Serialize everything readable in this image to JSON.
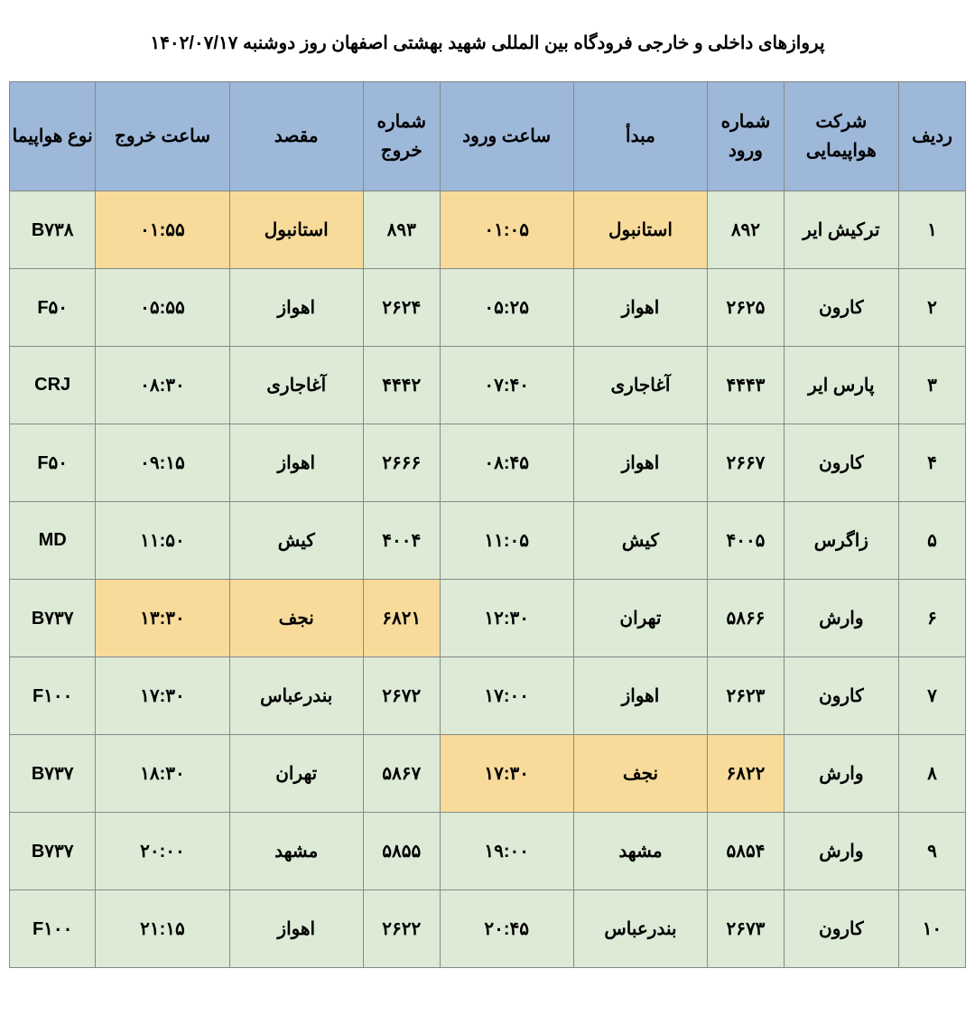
{
  "title": "پروازهای داخلی و خارجی فرودگاه بین المللی شهید بهشتی اصفهان روز دوشنبه ۱۴۰۲/۰۷/۱۷",
  "colors": {
    "header_bg": "#9db8d9",
    "cell_bg": "#dcead6",
    "highlight_bg": "#f8db9a",
    "border": "#888888",
    "page_bg": "#ffffff",
    "text": "#000000"
  },
  "headers": {
    "row": "ردیف",
    "airline": "شرکت\nهواپیمایی",
    "in_num": "شماره\nورود",
    "origin": "مبدأ",
    "in_time": "ساعت ورود",
    "out_num": "شماره\nخروج",
    "dest": "مقصد",
    "out_time": "ساعت خروج",
    "plane": "نوع هواپیما"
  },
  "rows": [
    {
      "row": "۱",
      "airline": "ترکیش ایر",
      "in_num": "۸۹۲",
      "origin": "استانبول",
      "in_time": "۰۱:۰۵",
      "out_num": "۸۹۳",
      "dest": "استانبول",
      "out_time": "۰۱:۵۵",
      "plane": "B۷۳۸",
      "hl": [
        "origin",
        "in_time",
        "dest",
        "out_time"
      ]
    },
    {
      "row": "۲",
      "airline": "کارون",
      "in_num": "۲۶۲۵",
      "origin": "اهواز",
      "in_time": "۰۵:۲۵",
      "out_num": "۲۶۲۴",
      "dest": "اهواز",
      "out_time": "۰۵:۵۵",
      "plane": "F۵۰",
      "hl": []
    },
    {
      "row": "۳",
      "airline": "پارس ایر",
      "in_num": "۴۴۴۳",
      "origin": "آغاجاری",
      "in_time": "۰۷:۴۰",
      "out_num": "۴۴۴۲",
      "dest": "آغاجاری",
      "out_time": "۰۸:۳۰",
      "plane": "CRJ",
      "hl": []
    },
    {
      "row": "۴",
      "airline": "کارون",
      "in_num": "۲۶۶۷",
      "origin": "اهواز",
      "in_time": "۰۸:۴۵",
      "out_num": "۲۶۶۶",
      "dest": "اهواز",
      "out_time": "۰۹:۱۵",
      "plane": "F۵۰",
      "hl": []
    },
    {
      "row": "۵",
      "airline": "زاگرس",
      "in_num": "۴۰۰۵",
      "origin": "کیش",
      "in_time": "۱۱:۰۵",
      "out_num": "۴۰۰۴",
      "dest": "کیش",
      "out_time": "۱۱:۵۰",
      "plane": "MD",
      "hl": []
    },
    {
      "row": "۶",
      "airline": "وارش",
      "in_num": "۵۸۶۶",
      "origin": "تهران",
      "in_time": "۱۲:۳۰",
      "out_num": "۶۸۲۱",
      "dest": "نجف",
      "out_time": "۱۳:۳۰",
      "plane": "B۷۳۷",
      "hl": [
        "out_num",
        "dest",
        "out_time"
      ]
    },
    {
      "row": "۷",
      "airline": "کارون",
      "in_num": "۲۶۲۳",
      "origin": "اهواز",
      "in_time": "۱۷:۰۰",
      "out_num": "۲۶۷۲",
      "dest": "بندرعباس",
      "out_time": "۱۷:۳۰",
      "plane": "F۱۰۰",
      "hl": []
    },
    {
      "row": "۸",
      "airline": "وارش",
      "in_num": "۶۸۲۲",
      "origin": "نجف",
      "in_time": "۱۷:۳۰",
      "out_num": "۵۸۶۷",
      "dest": "تهران",
      "out_time": "۱۸:۳۰",
      "plane": "B۷۳۷",
      "hl": [
        "in_num",
        "origin",
        "in_time"
      ]
    },
    {
      "row": "۹",
      "airline": "وارش",
      "in_num": "۵۸۵۴",
      "origin": "مشهد",
      "in_time": "۱۹:۰۰",
      "out_num": "۵۸۵۵",
      "dest": "مشهد",
      "out_time": "۲۰:۰۰",
      "plane": "B۷۳۷",
      "hl": []
    },
    {
      "row": "۱۰",
      "airline": "کارون",
      "in_num": "۲۶۷۳",
      "origin": "بندرعباس",
      "in_time": "۲۰:۴۵",
      "out_num": "۲۶۲۲",
      "dest": "اهواز",
      "out_time": "۲۱:۱۵",
      "plane": "F۱۰۰",
      "hl": []
    }
  ]
}
